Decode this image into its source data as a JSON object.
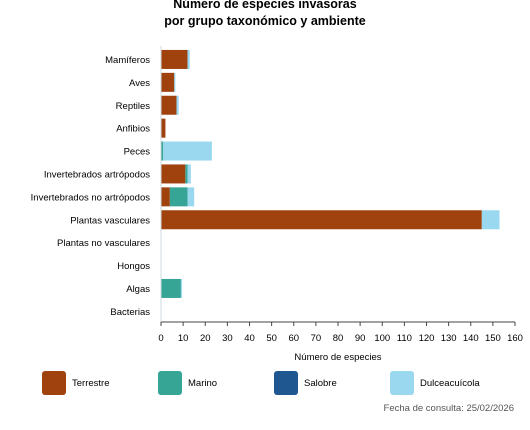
{
  "chart_data": {
    "type": "bar",
    "orientation": "horizontal",
    "stacked": true,
    "title_line1": "Número de especies invasoras",
    "title_line2": "por grupo taxonómico y ambiente",
    "xlabel": "Número de especies",
    "ylabel": "",
    "xlim": [
      0,
      160
    ],
    "xticks": [
      0,
      10,
      20,
      30,
      40,
      50,
      60,
      70,
      80,
      90,
      100,
      110,
      120,
      130,
      140,
      150,
      160
    ],
    "grid": false,
    "legend_position": "bottom",
    "categories": [
      "Mamíferos",
      "Aves",
      "Reptiles",
      "Anfibios",
      "Peces",
      "Invertebrados artrópodos",
      "Invertebrados no artrópodos",
      "Plantas vasculares",
      "Plantas no vasculares",
      "Hongos",
      "Algas",
      "Bacterias"
    ],
    "series": [
      {
        "name": "Terrestre",
        "color": "#a0420e",
        "values": [
          12,
          6,
          7,
          2,
          0,
          11,
          4,
          145,
          0,
          0,
          0,
          0
        ]
      },
      {
        "name": "Marino",
        "color": "#36a596",
        "values": [
          0,
          0,
          0,
          0,
          1,
          1,
          8,
          0,
          0,
          0,
          9,
          0
        ]
      },
      {
        "name": "Salobre",
        "color": "#1f5791",
        "values": [
          0,
          0,
          0,
          0,
          0,
          0,
          0,
          0,
          0,
          0,
          0,
          0
        ]
      },
      {
        "name": "Dulceacuícola",
        "color": "#99d8ef",
        "values": [
          1,
          0.5,
          1,
          0,
          22,
          1.5,
          3,
          8,
          0,
          0,
          0.5,
          0
        ]
      }
    ]
  },
  "footnote": "Fecha de consulta: 25/02/2026"
}
